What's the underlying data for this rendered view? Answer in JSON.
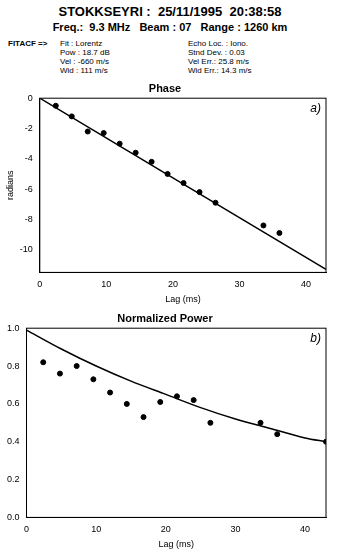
{
  "header": {
    "title": "STOKKSEYRI :  25/11/1995  20:38:58",
    "subtitle": "Freq.:  9.3 MHz   Beam : 07   Range : 1260 km",
    "fit_label": "FITACF =>",
    "fit_params_left": [
      "Fit : Lorentz",
      "Pow : 18.7 dB",
      "Vel : -660 m/s",
      "Wid : 111 m/s"
    ],
    "fit_params_right": [
      "Echo Loc. : Iono.",
      "Stnd Dev. : 0.03",
      "Vel Err.: 25.8 m/s",
      "Wid Err.: 14.3 m/s"
    ]
  },
  "chart_data": [
    {
      "type": "scatter",
      "title": "Phase",
      "annotation": "a)",
      "x_label": "Lag (ms)",
      "y_label": "radians",
      "xlim": [
        0,
        43
      ],
      "xticks": [
        0,
        10,
        20,
        30,
        40
      ],
      "ylim": [
        -11.5,
        0
      ],
      "yticks": [
        -10,
        -8,
        -6,
        -4,
        -2,
        0
      ],
      "grid": false,
      "series": [
        {
          "type": "scatter",
          "color": "#000000",
          "marker": "circle",
          "x": [
            2.4,
            4.8,
            7.2,
            9.6,
            12,
            14.4,
            16.8,
            19.2,
            21.6,
            24,
            26.4,
            33.6,
            36
          ],
          "values": [
            -0.5,
            -1.2,
            -2.2,
            -2.3,
            -3.0,
            -3.6,
            -4.2,
            -5.0,
            -5.6,
            -6.2,
            -6.9,
            -8.4,
            -8.9
          ]
        },
        {
          "type": "line",
          "color": "#000000",
          "line_style": "solid",
          "x": [
            0,
            43
          ],
          "values": [
            0,
            -11.3
          ]
        }
      ]
    },
    {
      "type": "scatter",
      "title": "Normalized Power",
      "annotation": "b)",
      "x_label": "Lag (ms)",
      "xlim": [
        0,
        43
      ],
      "xticks": [
        0,
        10,
        20,
        30,
        40
      ],
      "ylim": [
        0,
        1
      ],
      "yticks": [
        {
          "value": 0,
          "label": "0.0"
        },
        {
          "value": 0.2,
          "label": "0.2"
        },
        {
          "value": 0.4,
          "label": "0.4"
        },
        {
          "value": 0.6,
          "label": "0.6"
        },
        {
          "value": 0.8,
          "label": "0.8"
        },
        {
          "value": 1,
          "label": "1.0"
        }
      ],
      "grid": false,
      "series": [
        {
          "type": "scatter",
          "color": "#000000",
          "marker": "circle",
          "x": [
            2.4,
            4.8,
            7.2,
            9.6,
            12,
            14.4,
            16.8,
            19.2,
            21.6,
            24,
            26.4,
            33.6,
            36,
            43
          ],
          "values": [
            0.82,
            0.76,
            0.8,
            0.73,
            0.66,
            0.6,
            0.53,
            0.61,
            0.64,
            0.62,
            0.5,
            0.5,
            0.44,
            0.4
          ]
        },
        {
          "type": "line",
          "color": "#000000",
          "line_style": "solid",
          "x": [
            0,
            5,
            10,
            15,
            20,
            25,
            30,
            35,
            40,
            43
          ],
          "values": [
            0.99,
            0.89,
            0.8,
            0.72,
            0.65,
            0.58,
            0.52,
            0.47,
            0.42,
            0.4
          ]
        }
      ]
    }
  ]
}
